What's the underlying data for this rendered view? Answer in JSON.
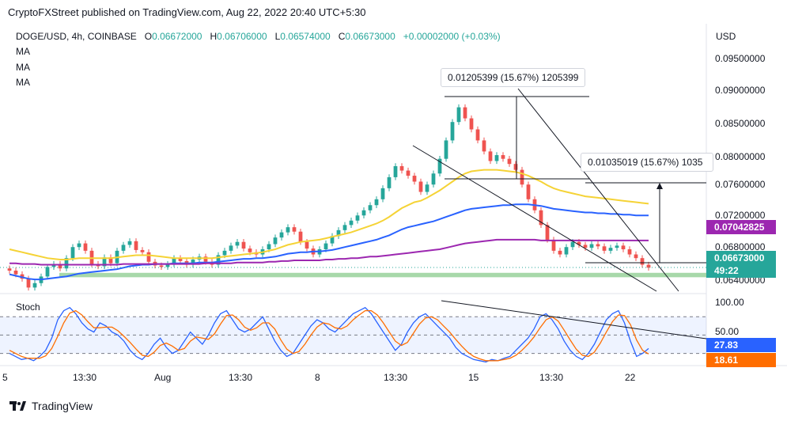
{
  "publisher": "CryptoFXStreet published on TradingView.com, Aug 22, 2022 20:40 UTC+5:30",
  "symbol_line": {
    "symbol": "DOGE/USD, 4h, COINBASE",
    "o_label": "O",
    "o_value": "0.06672000",
    "h_label": "H",
    "h_value": "0.06706000",
    "l_label": "L",
    "l_value": "0.06574000",
    "c_label": "C",
    "c_value": "0.06673000",
    "change": "+0.00002000 (+0.03%)"
  },
  "indicators": [
    "MA",
    "MA",
    "MA"
  ],
  "currency": "USD",
  "brand": "TradingView",
  "stoch_label": "Stoch",
  "colors": {
    "up": "#26a69a",
    "down": "#ef5350",
    "ma_yellow": "#f5d336",
    "ma_blue": "#2962ff",
    "ma_purple": "#9c27b0",
    "stoch_k": "#2962ff",
    "stoch_d": "#ff6d00",
    "support_zone": "#81c784"
  },
  "chart_data": [
    {
      "type": "candlestick",
      "title": "DOGE/USD, 4h, COINBASE",
      "y_axis_ticks": [
        "0.09500000",
        "0.09000000",
        "0.08500000",
        "0.08000000",
        "0.07600000",
        "0.07200000",
        "0.06800000",
        "0.06400000"
      ],
      "x_axis_ticks": [
        "5",
        "13:30",
        "Aug",
        "13:30",
        "8",
        "13:30",
        "15",
        "13:30",
        "22"
      ],
      "ylim": [
        0.0635,
        0.099
      ],
      "series": [
        {
          "name": "Price",
          "close": [
            0.0663,
            0.0658,
            0.0652,
            0.064,
            0.0646,
            0.0655,
            0.0668,
            0.0672,
            0.0666,
            0.068,
            0.0695,
            0.07,
            0.069,
            0.0672,
            0.0669,
            0.0681,
            0.0673,
            0.069,
            0.0698,
            0.0703,
            0.0691,
            0.0688,
            0.0675,
            0.067,
            0.0668,
            0.0672,
            0.068,
            0.0676,
            0.0671,
            0.0678,
            0.0682,
            0.0675,
            0.0671,
            0.0684,
            0.069,
            0.0697,
            0.0702,
            0.0693,
            0.0688,
            0.0685,
            0.0692,
            0.0699,
            0.0708,
            0.0715,
            0.0722,
            0.0716,
            0.0702,
            0.0693,
            0.0685,
            0.0692,
            0.07,
            0.071,
            0.0718,
            0.0725,
            0.0731,
            0.0738,
            0.0745,
            0.0752,
            0.076,
            0.0775,
            0.079,
            0.0805,
            0.0799,
            0.0792,
            0.0784,
            0.077,
            0.078,
            0.0795,
            0.0815,
            0.084,
            0.0865,
            0.0885,
            0.087,
            0.0855,
            0.084,
            0.0825,
            0.0812,
            0.082,
            0.0815,
            0.0808,
            0.08,
            0.078,
            0.076,
            0.0745,
            0.0725,
            0.0705,
            0.069,
            0.0685,
            0.0695,
            0.0702,
            0.0698,
            0.0694,
            0.0699,
            0.0696,
            0.069,
            0.0694,
            0.0697,
            0.0692,
            0.0685,
            0.068,
            0.0671,
            0.0667
          ]
        },
        {
          "name": "MA",
          "values": [
            0.0692,
            0.069,
            0.0688,
            0.0686,
            0.0684,
            0.0682,
            0.068,
            0.0679,
            0.0678,
            0.0678,
            0.0679,
            0.068,
            0.068,
            0.068,
            0.068,
            0.068,
            0.068,
            0.0681,
            0.0682,
            0.0683,
            0.0684,
            0.0684,
            0.0684,
            0.0683,
            0.0682,
            0.0681,
            0.068,
            0.068,
            0.068,
            0.068,
            0.068,
            0.068,
            0.068,
            0.0681,
            0.0682,
            0.0683,
            0.0684,
            0.0685,
            0.0686,
            0.0687,
            0.0688,
            0.069,
            0.0692,
            0.0695,
            0.0698,
            0.07,
            0.0702,
            0.0703,
            0.0704,
            0.0705,
            0.0707,
            0.0709,
            0.0711,
            0.0713,
            0.0715,
            0.0718,
            0.0721,
            0.0724,
            0.0727,
            0.0731,
            0.0736,
            0.0742,
            0.0748,
            0.0752,
            0.0756,
            0.0758,
            0.0762,
            0.0767,
            0.0772,
            0.0778,
            0.0784,
            0.079,
            0.0795,
            0.0798,
            0.0799,
            0.08,
            0.08,
            0.08,
            0.0799,
            0.0798,
            0.0797,
            0.0795,
            0.0792,
            0.0788,
            0.0784,
            0.0779,
            0.0775,
            0.0772,
            0.077,
            0.0768,
            0.0766,
            0.0764,
            0.0763,
            0.0762,
            0.0761,
            0.076,
            0.0759,
            0.0758,
            0.0757,
            0.0756,
            0.0755,
            0.0754
          ]
        },
        {
          "name": "MA",
          "values": [
            0.0658,
            0.0656,
            0.0654,
            0.0652,
            0.0651,
            0.0651,
            0.0652,
            0.0653,
            0.0654,
            0.0655,
            0.0657,
            0.0659,
            0.066,
            0.0661,
            0.0662,
            0.0663,
            0.0664,
            0.0665,
            0.0667,
            0.0669,
            0.067,
            0.0671,
            0.0671,
            0.0672,
            0.0672,
            0.0672,
            0.0673,
            0.0673,
            0.0673,
            0.0673,
            0.0674,
            0.0674,
            0.0674,
            0.0675,
            0.0676,
            0.0677,
            0.0678,
            0.0679,
            0.0679,
            0.068,
            0.068,
            0.0681,
            0.0682,
            0.0684,
            0.0686,
            0.0687,
            0.0688,
            0.0688,
            0.0689,
            0.0689,
            0.069,
            0.0691,
            0.0693,
            0.0695,
            0.0697,
            0.0699,
            0.0701,
            0.0703,
            0.0705,
            0.0708,
            0.0711,
            0.0715,
            0.0719,
            0.0722,
            0.0724,
            0.0726,
            0.0728,
            0.073,
            0.0733,
            0.0736,
            0.0739,
            0.0742,
            0.0745,
            0.0747,
            0.0748,
            0.0749,
            0.075,
            0.0751,
            0.0752,
            0.0752,
            0.0753,
            0.0753,
            0.0753,
            0.0752,
            0.0751,
            0.0749,
            0.0747,
            0.0746,
            0.0745,
            0.0744,
            0.0743,
            0.0742,
            0.0742,
            0.0741,
            0.0741,
            0.074,
            0.074,
            0.0739,
            0.0739,
            0.0738,
            0.0738,
            0.0738
          ]
        },
        {
          "name": "MA",
          "values": [
            0.0673,
            0.0673,
            0.0672,
            0.0672,
            0.0672,
            0.0671,
            0.0671,
            0.0671,
            0.0671,
            0.0671,
            0.0671,
            0.0671,
            0.0671,
            0.0671,
            0.0671,
            0.0671,
            0.0671,
            0.0671,
            0.0672,
            0.0672,
            0.0672,
            0.0672,
            0.0672,
            0.0672,
            0.0672,
            0.0672,
            0.0672,
            0.0672,
            0.0672,
            0.0672,
            0.0672,
            0.0673,
            0.0673,
            0.0673,
            0.0673,
            0.0673,
            0.0674,
            0.0674,
            0.0674,
            0.0674,
            0.0674,
            0.0675,
            0.0675,
            0.0676,
            0.0676,
            0.0677,
            0.0677,
            0.0677,
            0.0677,
            0.0677,
            0.0678,
            0.0678,
            0.0679,
            0.0679,
            0.068,
            0.068,
            0.0681,
            0.0682,
            0.0682,
            0.0683,
            0.0684,
            0.0685,
            0.0686,
            0.0687,
            0.0688,
            0.0689,
            0.069,
            0.0691,
            0.0692,
            0.0694,
            0.0696,
            0.0698,
            0.07,
            0.0701,
            0.0702,
            0.0703,
            0.0704,
            0.0705,
            0.0705,
            0.0705,
            0.0705,
            0.0705,
            0.0705,
            0.0705,
            0.0704,
            0.0704,
            0.0704,
            0.0704,
            0.0704,
            0.0704,
            0.0704,
            0.0704,
            0.0704,
            0.0704,
            0.0704,
            0.0704,
            0.0704,
            0.0704,
            0.0704,
            0.0704,
            0.0704,
            0.0704
          ]
        }
      ],
      "price_badges": [
        {
          "value": "0.07042825",
          "color": "#9c27b0"
        },
        {
          "value": "0.06673000",
          "color": "#26a69a"
        },
        {
          "value": "49:22",
          "color": "#26a69a"
        }
      ],
      "annotations": [
        "0.01205399 (15.67%) 1205399",
        "0.01035019 (15.67%) 1035"
      ],
      "support_zone": [
        0.0654,
        0.066
      ]
    },
    {
      "type": "line",
      "title": "Stoch",
      "y_axis_ticks": [
        "100.00",
        "50.00"
      ],
      "ylim": [
        0,
        105
      ],
      "series": [
        {
          "name": "%K",
          "values": [
            20,
            15,
            10,
            12,
            8,
            15,
            25,
            45,
            75,
            90,
            95,
            85,
            70,
            60,
            55,
            70,
            65,
            55,
            50,
            40,
            25,
            15,
            10,
            20,
            35,
            45,
            30,
            20,
            25,
            40,
            55,
            45,
            35,
            50,
            70,
            85,
            90,
            75,
            60,
            55,
            60,
            70,
            80,
            60,
            40,
            25,
            15,
            20,
            35,
            50,
            65,
            75,
            70,
            60,
            55,
            65,
            75,
            85,
            90,
            95,
            85,
            70,
            55,
            40,
            25,
            35,
            55,
            70,
            80,
            85,
            75,
            65,
            55,
            45,
            30,
            20,
            15,
            10,
            8,
            6,
            10,
            8,
            12,
            15,
            25,
            35,
            45,
            60,
            80,
            85,
            75,
            60,
            40,
            25,
            15,
            10,
            20,
            35,
            55,
            75,
            85,
            90,
            70,
            40,
            15,
            20,
            28
          ]
        },
        {
          "name": "%D",
          "values": [
            25,
            20,
            15,
            12,
            12,
            12,
            16,
            28,
            48,
            70,
            86,
            90,
            83,
            72,
            62,
            62,
            63,
            63,
            57,
            48,
            38,
            27,
            17,
            15,
            22,
            33,
            37,
            32,
            25,
            28,
            40,
            47,
            45,
            43,
            52,
            68,
            82,
            83,
            75,
            63,
            58,
            62,
            70,
            70,
            60,
            42,
            27,
            20,
            23,
            35,
            50,
            63,
            70,
            68,
            62,
            60,
            65,
            75,
            83,
            90,
            90,
            83,
            70,
            55,
            40,
            33,
            38,
            53,
            68,
            78,
            80,
            75,
            65,
            55,
            43,
            32,
            22,
            15,
            11,
            8,
            8,
            8,
            10,
            12,
            17,
            25,
            35,
            47,
            62,
            75,
            80,
            73,
            58,
            42,
            27,
            17,
            15,
            22,
            37,
            55,
            72,
            83,
            82,
            67,
            42,
            25,
            19
          ]
        }
      ]
    }
  ]
}
